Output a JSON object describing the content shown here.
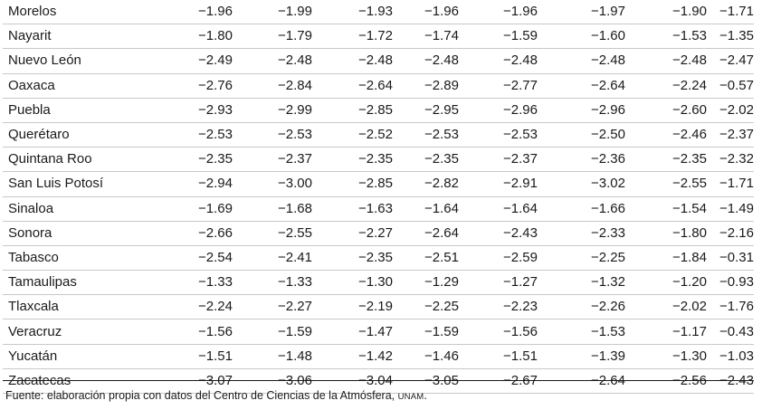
{
  "table": {
    "rows": [
      {
        "state": "Morelos",
        "values": [
          "−1.96",
          "−1.99",
          "−1.93",
          "−1.96",
          "−1.96",
          "−1.97",
          "−1.90",
          "−1.71"
        ]
      },
      {
        "state": "Nayarit",
        "values": [
          "−1.80",
          "−1.79",
          "−1.72",
          "−1.74",
          "−1.59",
          "−1.60",
          "−1.53",
          "−1.35"
        ]
      },
      {
        "state": "Nuevo León",
        "values": [
          "−2.49",
          "−2.48",
          "−2.48",
          "−2.48",
          "−2.48",
          "−2.48",
          "−2.48",
          "−2.47"
        ]
      },
      {
        "state": "Oaxaca",
        "values": [
          "−2.76",
          "−2.84",
          "−2.64",
          "−2.89",
          "−2.77",
          "−2.64",
          "−2.24",
          "−0.57"
        ]
      },
      {
        "state": "Puebla",
        "values": [
          "−2.93",
          "−2.99",
          "−2.85",
          "−2.95",
          "−2.96",
          "−2.96",
          "−2.60",
          "−2.02"
        ]
      },
      {
        "state": "Querétaro",
        "values": [
          "−2.53",
          "−2.53",
          "−2.52",
          "−2.53",
          "−2.53",
          "−2.50",
          "−2.46",
          "−2.37"
        ]
      },
      {
        "state": "Quintana Roo",
        "values": [
          "−2.35",
          "−2.37",
          "−2.35",
          "−2.35",
          "−2.37",
          "−2.36",
          "−2.35",
          "−2.32"
        ]
      },
      {
        "state": "San Luis Potosí",
        "values": [
          "−2.94",
          "−3.00",
          "−2.85",
          "−2.82",
          "−2.91",
          "−3.02",
          "−2.55",
          "−1.71"
        ]
      },
      {
        "state": "Sinaloa",
        "values": [
          "−1.69",
          "−1.68",
          "−1.63",
          "−1.64",
          "−1.64",
          "−1.66",
          "−1.54",
          "−1.49"
        ]
      },
      {
        "state": "Sonora",
        "values": [
          "−2.66",
          "−2.55",
          "−2.27",
          "−2.64",
          "−2.43",
          "−2.33",
          "−1.80",
          "−2.16"
        ]
      },
      {
        "state": "Tabasco",
        "values": [
          "−2.54",
          "−2.41",
          "−2.35",
          "−2.51",
          "−2.59",
          "−2.25",
          "−1.84",
          "−0.31"
        ]
      },
      {
        "state": "Tamaulipas",
        "values": [
          "−1.33",
          "−1.33",
          "−1.30",
          "−1.29",
          "−1.27",
          "−1.32",
          "−1.20",
          "−0.93"
        ]
      },
      {
        "state": "Tlaxcala",
        "values": [
          "−2.24",
          "−2.27",
          "−2.19",
          "−2.25",
          "−2.23",
          "−2.26",
          "−2.02",
          "−1.76"
        ]
      },
      {
        "state": "Veracruz",
        "values": [
          "−1.56",
          "−1.59",
          "−1.47",
          "−1.59",
          "−1.56",
          "−1.53",
          "−1.17",
          "−0.43"
        ]
      },
      {
        "state": "Yucatán",
        "values": [
          "−1.51",
          "−1.48",
          "−1.42",
          "−1.46",
          "−1.51",
          "−1.39",
          "−1.30",
          "−1.03"
        ]
      },
      {
        "state": "Zacatecas",
        "values": [
          "−3.07",
          "−3.06",
          "−3.04",
          "−3.05",
          "−2.67",
          "−2.64",
          "−2.56",
          "−2.43"
        ]
      }
    ]
  },
  "source": {
    "text": "Fuente: elaboración propia con datos del Centro de Ciencias de la Atmósfera, ",
    "org": "UNAM",
    "end": "."
  }
}
